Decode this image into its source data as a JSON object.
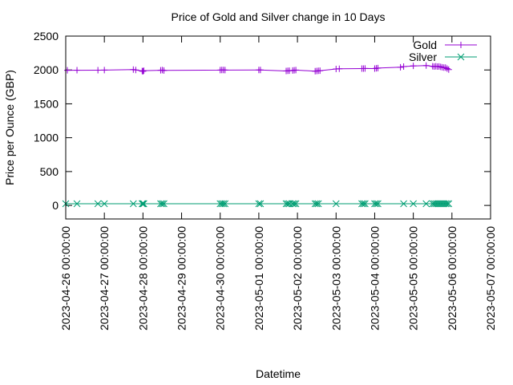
{
  "chart_data": {
    "type": "line",
    "title": "Price of Gold and Silver change in 10 Days",
    "xlabel": "Datetime",
    "ylabel": "Price per Ounce (GBP)",
    "ylim": [
      -200,
      2500
    ],
    "yticks": [
      0,
      500,
      1000,
      1500,
      2000,
      2500
    ],
    "xlim": [
      "2023-04-26 00:00:00",
      "2023-05-07 00:00:00"
    ],
    "xticks": [
      "2023-04-26 00:00:00",
      "2023-04-27 00:00:00",
      "2023-04-28 00:00:00",
      "2023-04-29 00:00:00",
      "2023-04-30 00:00:00",
      "2023-05-01 00:00:00",
      "2023-05-02 00:00:00",
      "2023-05-03 00:00:00",
      "2023-05-04 00:00:00",
      "2023-05-05 00:00:00",
      "2023-05-06 00:00:00",
      "2023-05-07 00:00:00"
    ],
    "grid": false,
    "legend": "top-right",
    "series": [
      {
        "name": "Gold",
        "color": "#9400d3",
        "marker": "plus",
        "points": [
          [
            "2023-04-26 01:00:00",
            1995
          ],
          [
            "2023-04-26 07:00:00",
            1996
          ],
          [
            "2023-04-26 20:00:00",
            1997
          ],
          [
            "2023-04-27 00:00:00",
            1998
          ],
          [
            "2023-04-27 18:00:00",
            2005
          ],
          [
            "2023-04-27 19:30:00",
            2000
          ],
          [
            "2023-04-27 23:30:00",
            1985
          ],
          [
            "2023-04-28 00:00:00",
            1980
          ],
          [
            "2023-04-28 00:30:00",
            1990
          ],
          [
            "2023-04-28 11:00:00",
            1995
          ],
          [
            "2023-04-28 12:00:00",
            1998
          ],
          [
            "2023-04-28 13:00:00",
            1993
          ],
          [
            "2023-04-30 00:00:00",
            1998
          ],
          [
            "2023-04-30 01:00:00",
            1999
          ],
          [
            "2023-04-30 02:00:00",
            2000
          ],
          [
            "2023-04-30 03:00:00",
            1998
          ],
          [
            "2023-05-01 00:00:00",
            2000
          ],
          [
            "2023-05-01 01:00:00",
            2000
          ],
          [
            "2023-05-01 17:00:00",
            1985
          ],
          [
            "2023-05-01 18:00:00",
            1988
          ],
          [
            "2023-05-01 19:00:00",
            1990
          ],
          [
            "2023-05-01 21:00:00",
            1992
          ],
          [
            "2023-05-01 22:00:00",
            1995
          ],
          [
            "2023-05-01 23:00:00",
            1998
          ],
          [
            "2023-05-02 11:00:00",
            1982
          ],
          [
            "2023-05-02 12:00:00",
            1985
          ],
          [
            "2023-05-02 13:00:00",
            1988
          ],
          [
            "2023-05-02 14:00:00",
            1990
          ],
          [
            "2023-05-03 00:00:00",
            2015
          ],
          [
            "2023-05-03 02:00:00",
            2018
          ],
          [
            "2023-05-03 16:00:00",
            2020
          ],
          [
            "2023-05-03 17:00:00",
            2020
          ],
          [
            "2023-05-03 18:00:00",
            2022
          ],
          [
            "2023-05-04 00:00:00",
            2020
          ],
          [
            "2023-05-04 01:00:00",
            2025
          ],
          [
            "2023-05-04 02:00:00",
            2028
          ],
          [
            "2023-05-04 16:00:00",
            2040
          ],
          [
            "2023-05-04 18:00:00",
            2050
          ],
          [
            "2023-05-05 00:00:00",
            2060
          ],
          [
            "2023-05-05 08:00:00",
            2065
          ],
          [
            "2023-05-05 12:00:00",
            2055
          ],
          [
            "2023-05-05 13:00:00",
            2050
          ],
          [
            "2023-05-05 14:00:00",
            2055
          ],
          [
            "2023-05-05 15:00:00",
            2050
          ],
          [
            "2023-05-05 16:00:00",
            2052
          ],
          [
            "2023-05-05 17:00:00",
            2045
          ],
          [
            "2023-05-05 18:00:00",
            2040
          ],
          [
            "2023-05-05 19:00:00",
            2035
          ],
          [
            "2023-05-05 20:00:00",
            2035
          ],
          [
            "2023-05-05 21:00:00",
            2020
          ],
          [
            "2023-05-05 22:00:00",
            2005
          ]
        ]
      },
      {
        "name": "Silver",
        "color": "#009e73",
        "marker": "cross",
        "points": [
          [
            "2023-04-26 00:00:00",
            25
          ],
          [
            "2023-04-26 07:00:00",
            25
          ],
          [
            "2023-04-26 20:00:00",
            25
          ],
          [
            "2023-04-27 00:00:00",
            25
          ],
          [
            "2023-04-27 18:00:00",
            25
          ],
          [
            "2023-04-27 23:30:00",
            25
          ],
          [
            "2023-04-28 00:00:00",
            25
          ],
          [
            "2023-04-28 00:30:00",
            25
          ],
          [
            "2023-04-28 11:00:00",
            25
          ],
          [
            "2023-04-28 12:00:00",
            25
          ],
          [
            "2023-04-28 13:00:00",
            25
          ],
          [
            "2023-04-30 00:00:00",
            25
          ],
          [
            "2023-04-30 01:00:00",
            25
          ],
          [
            "2023-04-30 02:00:00",
            25
          ],
          [
            "2023-04-30 03:00:00",
            25
          ],
          [
            "2023-05-01 00:00:00",
            25
          ],
          [
            "2023-05-01 01:00:00",
            25
          ],
          [
            "2023-05-01 17:00:00",
            25
          ],
          [
            "2023-05-01 18:00:00",
            25
          ],
          [
            "2023-05-01 19:00:00",
            25
          ],
          [
            "2023-05-01 21:00:00",
            25
          ],
          [
            "2023-05-01 22:00:00",
            25
          ],
          [
            "2023-05-01 23:00:00",
            25
          ],
          [
            "2023-05-02 11:00:00",
            25
          ],
          [
            "2023-05-02 12:00:00",
            25
          ],
          [
            "2023-05-02 13:00:00",
            25
          ],
          [
            "2023-05-03 00:00:00",
            25
          ],
          [
            "2023-05-03 16:00:00",
            25
          ],
          [
            "2023-05-03 17:00:00",
            25
          ],
          [
            "2023-05-03 18:00:00",
            25
          ],
          [
            "2023-05-04 00:00:00",
            25
          ],
          [
            "2023-05-04 01:00:00",
            25
          ],
          [
            "2023-05-04 02:00:00",
            25
          ],
          [
            "2023-05-04 18:00:00",
            25
          ],
          [
            "2023-05-05 00:00:00",
            25
          ],
          [
            "2023-05-05 08:00:00",
            25
          ],
          [
            "2023-05-05 12:00:00",
            25
          ],
          [
            "2023-05-05 13:00:00",
            25
          ],
          [
            "2023-05-05 14:00:00",
            25
          ],
          [
            "2023-05-05 15:00:00",
            25
          ],
          [
            "2023-05-05 16:00:00",
            25
          ],
          [
            "2023-05-05 17:00:00",
            25
          ],
          [
            "2023-05-05 18:00:00",
            25
          ],
          [
            "2023-05-05 19:00:00",
            25
          ],
          [
            "2023-05-05 20:00:00",
            25
          ],
          [
            "2023-05-05 21:00:00",
            25
          ],
          [
            "2023-05-05 22:00:00",
            25
          ]
        ]
      }
    ]
  }
}
